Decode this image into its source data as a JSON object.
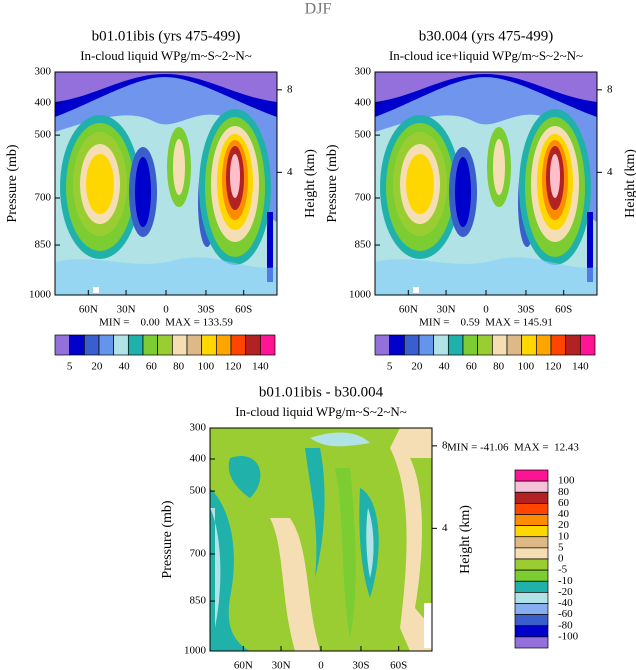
{
  "title": "DJF",
  "panels": [
    {
      "title": "b01.01ibis (yrs 475-499)",
      "subtitle": "In-cloud liquid WPg/m~S~2~N~",
      "y_label": "Pressure (mb)",
      "y2_label": "Height (km)",
      "yticks": [
        "300",
        "400",
        "500",
        "700",
        "850",
        "1000"
      ],
      "y2ticks": [
        "8",
        "4"
      ],
      "xticks": [
        "60N",
        "30N",
        "0",
        "30S",
        "60S"
      ],
      "stats": "MIN =    0.00  MAX = 133.59",
      "colorbar": [
        "5",
        "20",
        "40",
        "60",
        "80",
        "100",
        "120",
        "140"
      ]
    },
    {
      "title": "b30.004 (yrs 475-499)",
      "subtitle": "In-cloud ice+liquid WPg/m~S~2~N~",
      "y_label": "Pressure (mb)",
      "y2_label": "Height (km)",
      "yticks": [
        "300",
        "400",
        "500",
        "700",
        "850",
        "1000"
      ],
      "y2ticks": [
        "8",
        "4"
      ],
      "xticks": [
        "60N",
        "30N",
        "0",
        "30S",
        "60S"
      ],
      "stats": "MIN =    0.59  MAX = 145.91",
      "colorbar": [
        "5",
        "20",
        "40",
        "60",
        "80",
        "100",
        "120",
        "140"
      ]
    },
    {
      "title": "b01.01ibis - b30.004",
      "subtitle": "In-cloud liquid WPg/m~S~2~N~",
      "y_label": "Pressure (mb)",
      "y2_label": "Height (km)",
      "yticks": [
        "300",
        "400",
        "500",
        "700",
        "850",
        "1000"
      ],
      "y2ticks": [
        "8",
        "4"
      ],
      "xticks": [
        "60N",
        "30N",
        "0",
        "30S",
        "60S"
      ],
      "stats": "MIN = -41.06  MAX =  12.43",
      "colorbar": [
        "100",
        "80",
        "60",
        "40",
        "20",
        "10",
        "5",
        "0",
        "-5",
        "-10",
        "-20",
        "-40",
        "-60",
        "-80",
        "-100"
      ]
    }
  ]
}
